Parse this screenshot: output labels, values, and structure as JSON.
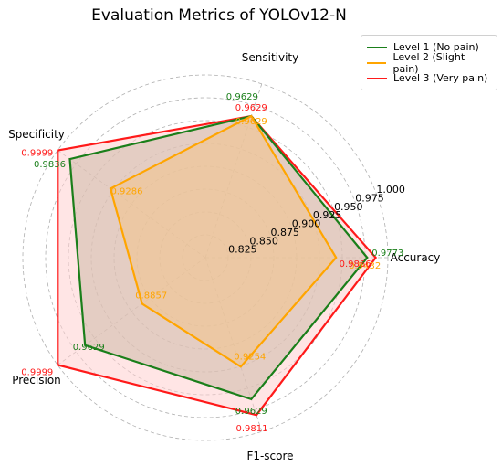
{
  "chart_data": {
    "type": "radar",
    "title": "Evaluation Metrics of YOLOv12-N",
    "axes": [
      "Accuracy",
      "Sensitivity",
      "Specificity",
      "Precision",
      "F1-score"
    ],
    "r_range": [
      0.8,
      1.0
    ],
    "r_ticks": [
      "0.825",
      "0.850",
      "0.875",
      "0.900",
      "0.925",
      "0.950",
      "0.975",
      "1.000"
    ],
    "legend_position": "top-right",
    "grid": true,
    "series": [
      {
        "name": "Level 1 (No pain)",
        "color": "#1a7f1a",
        "fill": "#cdb9a8",
        "values": [
          0.9773,
          0.9629,
          0.9836,
          0.9629,
          0.9629
        ],
        "labels": [
          "0.9773",
          "0.9629",
          "0.9836",
          "0.9629",
          "0.9629"
        ]
      },
      {
        "name": "Level 2 (Slight pain)",
        "color": "#ffa500",
        "fill": "#f3c48a",
        "values": [
          0.9432,
          0.9629,
          0.9286,
          0.8857,
          0.9254
        ],
        "labels": [
          "0.9432",
          "0.9629",
          "0.9286",
          "0.8857",
          "0.9254"
        ]
      },
      {
        "name": "Level 3 (Very pain)",
        "color": "#ff1a1a",
        "fill": "#ffd0d0",
        "values": [
          0.9866,
          0.9629,
          0.9999,
          0.9999,
          0.9811
        ],
        "labels": [
          "0.9866",
          "0.9629",
          "0.9999",
          "0.9999",
          "0.9811"
        ]
      }
    ]
  }
}
